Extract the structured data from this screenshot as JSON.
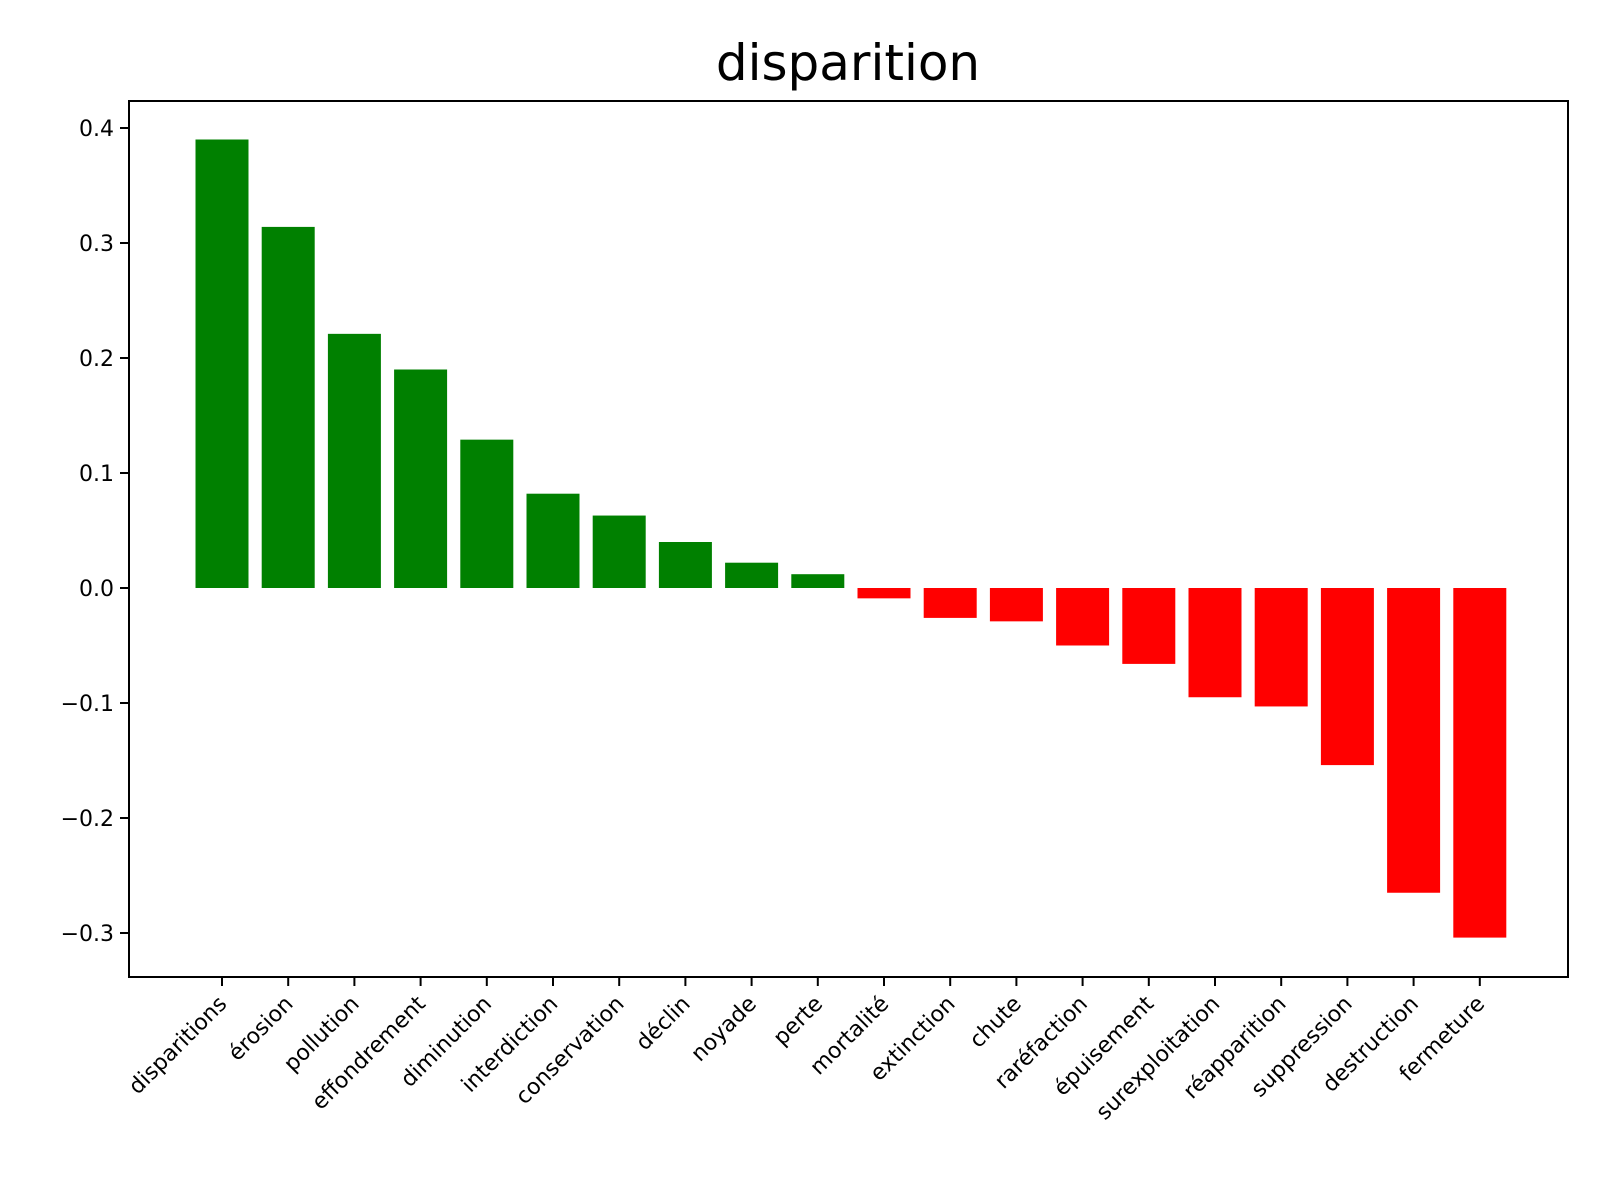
{
  "chart_data": {
    "type": "bar",
    "title": "disparition",
    "xlabel": "",
    "ylabel": "",
    "ylim": [
      -0.34,
      0.425
    ],
    "yticks": [
      0.4,
      0.3,
      0.2,
      0.1,
      0.0,
      -0.1,
      -0.2,
      -0.3
    ],
    "ytick_labels": [
      "0.4",
      "0.3",
      "0.2",
      "0.1",
      "0.0",
      "−0.1",
      "−0.2",
      "−0.3"
    ],
    "categories": [
      "disparitions",
      "érosion",
      "pollution",
      "effondrement",
      "diminution",
      "interdiction",
      "conservation",
      "déclin",
      "noyade",
      "perte",
      "mortalité",
      "extinction",
      "chute",
      "raréfaction",
      "épuisement",
      "surexploitation",
      "réapparition",
      "suppression",
      "destruction",
      "fermeture"
    ],
    "values": [
      0.39,
      0.314,
      0.221,
      0.19,
      0.129,
      0.082,
      0.063,
      0.04,
      0.022,
      0.012,
      -0.009,
      -0.026,
      -0.029,
      -0.05,
      -0.066,
      -0.095,
      -0.103,
      -0.154,
      -0.265,
      -0.304
    ],
    "colors": {
      "positive": "#008000",
      "negative": "#ff0000"
    },
    "grid": false,
    "legend": "none"
  }
}
